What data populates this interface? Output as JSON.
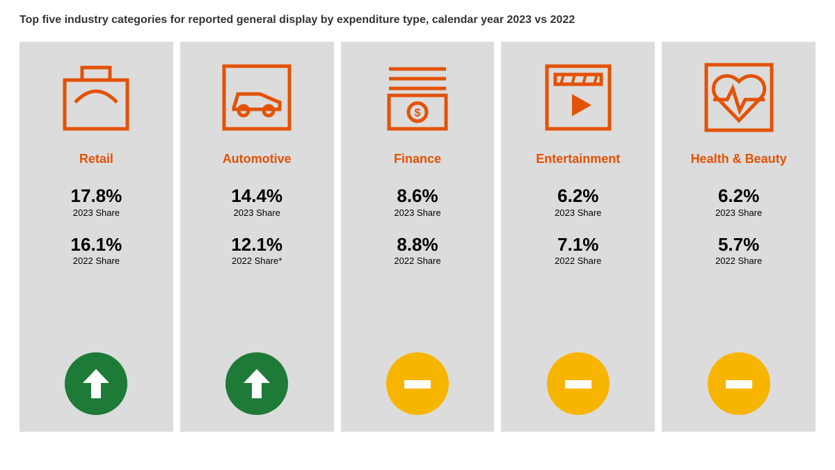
{
  "title": "Top five industry categories for reported general display by expenditure type, calendar year 2023 vs 2022",
  "styling": {
    "accent_color": "#e35205",
    "card_background": "#dcdcdc",
    "up_color": "#1e7a37",
    "flat_color": "#f7b500",
    "indicator_fg": "#ffffff",
    "title_fontsize": 16,
    "category_fontsize": 18,
    "value_fontsize": 26,
    "label_fontsize": 13,
    "icon_stroke_width": 5
  },
  "categories": [
    {
      "name": "Retail",
      "icon": "retail",
      "share_2023": "17.8%",
      "label_2023": "2023 Share",
      "share_2022": "16.1%",
      "label_2022": "2022 Share",
      "trend": "up"
    },
    {
      "name": "Automotive",
      "icon": "automotive",
      "share_2023": "14.4%",
      "label_2023": "2023 Share",
      "share_2022": "12.1%",
      "label_2022": "2022 Share*",
      "trend": "up"
    },
    {
      "name": "Finance",
      "icon": "finance",
      "share_2023": "8.6%",
      "label_2023": "2023 Share",
      "share_2022": "8.8%",
      "label_2022": "2022 Share",
      "trend": "flat"
    },
    {
      "name": "Entertainment",
      "icon": "entertainment",
      "share_2023": "6.2%",
      "label_2023": "2023 Share",
      "share_2022": "7.1%",
      "label_2022": "2022 Share",
      "trend": "flat"
    },
    {
      "name": "Health & Beauty",
      "icon": "health",
      "share_2023": "6.2%",
      "label_2023": "2023 Share",
      "share_2022": "5.7%",
      "label_2022": "2022 Share",
      "trend": "flat"
    }
  ]
}
